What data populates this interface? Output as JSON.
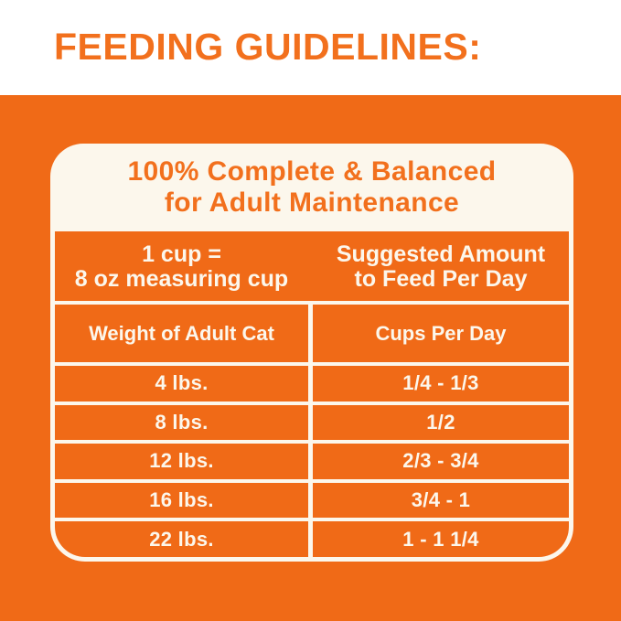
{
  "page_title": "FEEDING GUIDELINES:",
  "panel": {
    "title_line1": "100% Complete & Balanced",
    "title_line2": "for Adult Maintenance"
  },
  "table": {
    "col1_header_line1": "1 cup =",
    "col1_header_line2": "8 oz measuring cup",
    "col2_header_line1": "Suggested Amount",
    "col2_header_line2": "to Feed Per Day",
    "subheaders": {
      "weight": "Weight of Adult Cat",
      "cups": "Cups Per Day"
    },
    "rows": [
      {
        "weight": "4 lbs.",
        "cups": "1/4 - 1/3"
      },
      {
        "weight": "8 lbs.",
        "cups": "1/2"
      },
      {
        "weight": "12 lbs.",
        "cups": "2/3 - 3/4"
      },
      {
        "weight": "16 lbs.",
        "cups": "3/4 - 1"
      },
      {
        "weight": "22 lbs.",
        "cups": "1 - 1 1/4"
      }
    ]
  },
  "colors": {
    "orange_panel": "#F06A17",
    "orange_text": "#F2701D",
    "cream_white": "#FCF7EC",
    "page_background": "#FFFFFF"
  }
}
